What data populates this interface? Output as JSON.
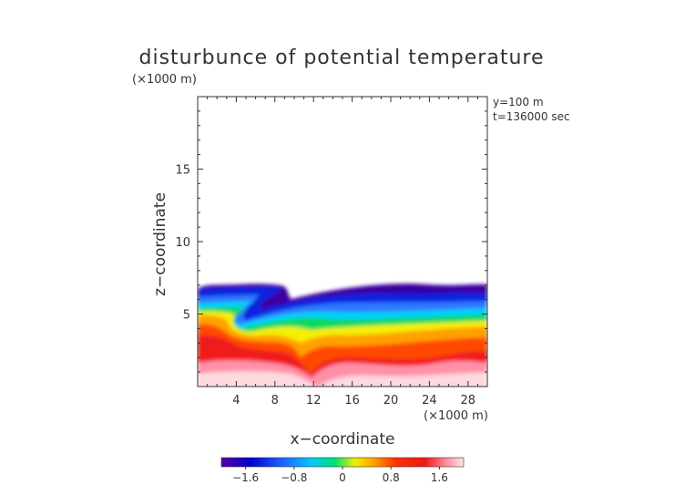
{
  "chart_data": {
    "type": "heatmap",
    "title": "disturbunce of potential temperature",
    "unit_y_axis": "(×1000 m)",
    "unit_x_axis": "(×1000 m)",
    "xlabel": "x−coordinate",
    "ylabel": "z−coordinate",
    "annotations": [
      "y=100 m",
      "t=136000 sec"
    ],
    "xlim": [
      0,
      30
    ],
    "ylim": [
      0,
      20
    ],
    "x_ticks": [
      4,
      8,
      12,
      16,
      20,
      24,
      28
    ],
    "x_tick_labels": [
      "4",
      "8",
      "12",
      "16",
      "20",
      "24",
      "28"
    ],
    "y_ticks": [
      5,
      10,
      15
    ],
    "y_tick_labels": [
      "5",
      "10",
      "15"
    ],
    "grid": false,
    "colorbar": {
      "ticks": [
        -1.6,
        -0.8,
        0,
        0.8,
        1.6
      ],
      "tick_labels": [
        "−1.6",
        "−0.8",
        "0",
        "0.8",
        "1.6"
      ],
      "range": [
        -2.0,
        2.0
      ],
      "colors": [
        "#5a00a8",
        "#0000d0",
        "#2060ff",
        "#00c8ff",
        "#00e070",
        "#f0f000",
        "#ffa000",
        "#ff3000",
        "#f01818",
        "#ff8fa0",
        "#ffe6ea"
      ]
    },
    "layers": [
      {
        "name": "cold-top",
        "level": -1.7,
        "top_z": 7.1,
        "bottom_z": 6.6
      },
      {
        "name": "blue-band",
        "level": -0.9,
        "top_z": 6.7,
        "bottom_z": 5.7
      },
      {
        "name": "cyan-green-band",
        "level": 0.0,
        "top_z": 5.8,
        "bottom_z": 5.0
      },
      {
        "name": "orange-band",
        "level": 0.9,
        "top_z": 5.0,
        "bottom_z": 3.8
      },
      {
        "name": "red-band",
        "level": 1.5,
        "top_z": 3.8,
        "bottom_z": 2.2
      },
      {
        "name": "pink-base",
        "level": 2.0,
        "top_z": 2.4,
        "bottom_z": 0.0
      }
    ]
  }
}
